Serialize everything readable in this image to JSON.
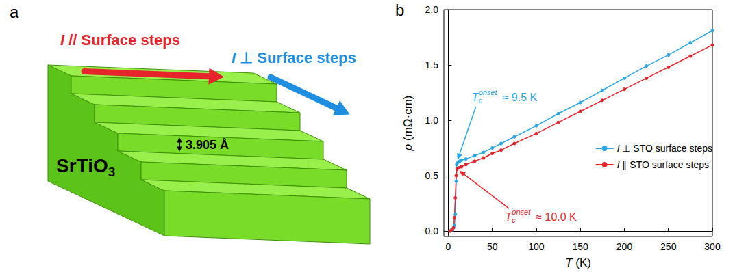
{
  "diagram": {
    "panel_label": "a",
    "material": "SrTiO3",
    "step_height": "3.905 Å",
    "arrows": [
      {
        "label": "I // Surface steps",
        "color": "#e5252b"
      },
      {
        "label": "I ⊥ Surface steps",
        "color": "#1e8ee0"
      }
    ]
  },
  "chart_data": {
    "type": "line",
    "panel_label": "b",
    "x_label": "T (K)",
    "y_label": "ρ (mΩ·cm)",
    "xlim": [
      -5,
      300
    ],
    "xticks": [
      0,
      50,
      100,
      150,
      200,
      250,
      300
    ],
    "ylim": [
      -0.05,
      2.0
    ],
    "yticks": [
      {
        "value": 0,
        "label": "0.0"
      },
      0.5,
      {
        "value": 1,
        "label": "1.0"
      },
      1.5,
      {
        "value": 2,
        "label": "2.0"
      }
    ],
    "grid": false,
    "legend": "right",
    "marker": "circle",
    "series": [
      {
        "name": "I ⊥ STO surface steps",
        "color": "#2aa7e8",
        "x": [
          2,
          5,
          7,
          8,
          9,
          9.5,
          11,
          13,
          15,
          20,
          30,
          40,
          50,
          60,
          75,
          100,
          125,
          150,
          175,
          200,
          225,
          250,
          275,
          300
        ],
        "values": [
          0.0,
          0.01,
          0.05,
          0.15,
          0.45,
          0.6,
          0.62,
          0.63,
          0.64,
          0.65,
          0.68,
          0.71,
          0.75,
          0.79,
          0.85,
          0.95,
          1.06,
          1.16,
          1.27,
          1.38,
          1.49,
          1.59,
          1.7,
          1.81
        ]
      },
      {
        "name": "I ∥ STO surface steps",
        "color": "#e5252b",
        "x": [
          2,
          4,
          6,
          7,
          8,
          9,
          10,
          12,
          15,
          20,
          30,
          40,
          50,
          60,
          75,
          100,
          125,
          150,
          175,
          200,
          225,
          250,
          275,
          300
        ],
        "values": [
          0.0,
          0.01,
          0.03,
          0.12,
          0.3,
          0.5,
          0.56,
          0.57,
          0.58,
          0.6,
          0.63,
          0.66,
          0.7,
          0.73,
          0.79,
          0.88,
          0.98,
          1.08,
          1.18,
          1.28,
          1.38,
          1.48,
          1.58,
          1.68
        ]
      }
    ],
    "annotations": [
      {
        "base": "T",
        "subscript": "c",
        "superscript": "onset",
        "text": "≈ 9.5 K",
        "color": "#2aa7e8",
        "point": [
          9.5,
          0.62
        ]
      },
      {
        "base": "T",
        "subscript": "c",
        "superscript": "onset",
        "text": "≈ 10.0 K",
        "color": "#e5252b",
        "point": [
          10,
          0.56
        ]
      }
    ]
  }
}
